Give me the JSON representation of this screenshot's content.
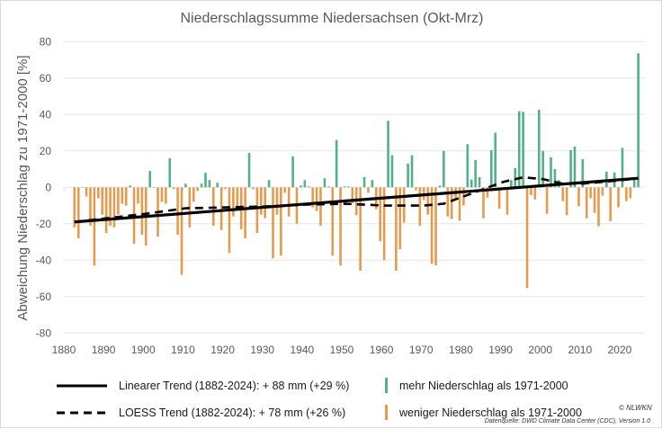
{
  "chart_data": {
    "type": "bar",
    "title": "Niederschlagssumme Niedersachsen (Okt-Mrz)",
    "xlabel": "",
    "ylabel": "Abweichung Niederschlag zu 1971-2000 [%]",
    "xlim": [
      1880,
      2025
    ],
    "ylim": [
      -80,
      80
    ],
    "xticks": [
      1880,
      1890,
      1900,
      1910,
      1920,
      1930,
      1940,
      1950,
      1960,
      1970,
      1980,
      1990,
      2000,
      2010,
      2020
    ],
    "yticks": [
      -80,
      -60,
      -40,
      -20,
      0,
      20,
      40,
      60,
      80
    ],
    "grid": true,
    "legend_position": "bottom",
    "start_year": 1882,
    "colors": {
      "positive": "#52b08c",
      "negative": "#e49b4e",
      "trend": "#000000"
    },
    "values": [
      -22,
      -28,
      0,
      -5,
      -21,
      -43,
      -6,
      -15,
      -25,
      -21,
      -22,
      -15,
      -9,
      -10,
      1,
      -31,
      -9,
      -26,
      -32,
      9,
      0,
      -27,
      -8,
      -9,
      16,
      -1,
      -26,
      -48,
      2,
      -22,
      -8,
      -2,
      2,
      8,
      4,
      -21,
      2.5,
      -23.5,
      -1,
      -36,
      -16,
      -12,
      -23,
      -28,
      19,
      -1,
      -25,
      -15,
      -17,
      4,
      -39,
      -15,
      -37.5,
      -3,
      -16,
      17,
      -20,
      1,
      4,
      0.5,
      -11,
      -13,
      -21,
      5,
      0.5,
      -37.5,
      26,
      -43,
      0.5,
      0.5,
      -8.7,
      -15.3,
      -45.8,
      5.6,
      -3,
      4,
      -12,
      -29.6,
      -40,
      36.5,
      17.6,
      -45.8,
      -34,
      -19.4,
      13,
      17.6,
      -1.6,
      -21,
      -7,
      -15,
      -42,
      -42.8,
      1,
      20,
      -16,
      -17.4,
      -6,
      -18.4,
      -10,
      23.7,
      4.3,
      15,
      5.6,
      -17,
      -5.6,
      20.4,
      30,
      -11.7,
      -1,
      -15,
      4,
      10.5,
      41.8,
      41.5,
      -55.3,
      -4.3,
      -6.6,
      42.6,
      20,
      -14.5,
      16.5,
      10,
      4,
      -7.6,
      -15.3,
      20.4,
      22.4,
      -10.4,
      15.5,
      -17,
      -6,
      -14,
      -21.4,
      -4.6,
      8.6,
      -18.6,
      8.2,
      -11,
      21.7,
      -7.6,
      -6,
      5,
      73.6
    ],
    "linear_trend": {
      "label": "Linearer Trend (1882-2024): + 88 mm (+29 %)",
      "x": [
        1882,
        2024
      ],
      "y": [
        -19,
        5
      ]
    },
    "loess_trend": {
      "label": "LOESS Trend (1882-2024): + 78 mm (+26 %)",
      "x": [
        1882,
        1890,
        1900,
        1910,
        1920,
        1930,
        1940,
        1950,
        1960,
        1970,
        1975,
        1980,
        1985,
        1990,
        1995,
        2000,
        2005,
        2010,
        2015,
        2020,
        2024
      ],
      "y": [
        -19,
        -17,
        -14.5,
        -11.5,
        -11,
        -10.5,
        -9.5,
        -9,
        -10,
        -10,
        -9,
        -5,
        -1,
        3,
        5.5,
        4.5,
        2,
        2,
        3,
        4,
        5
      ]
    },
    "series_labels": {
      "positive": "mehr Niederschlag als 1971-2000",
      "negative": "weniger Niederschlag als 1971-2000"
    }
  },
  "footer": {
    "copyright": "© NLWKN",
    "source": "Datenquelle: DWD Climate Data Center (CDC), Version 1.0"
  }
}
